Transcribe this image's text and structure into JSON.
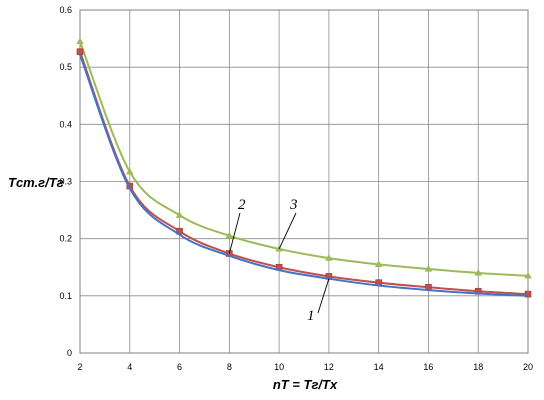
{
  "chart_data": {
    "type": "line",
    "xlabel": "nT = Tг/Tх",
    "ylabel": "Tст.г/Tг",
    "xlim": [
      2,
      20
    ],
    "ylim": [
      0,
      0.6
    ],
    "xticks": [
      2,
      4,
      6,
      8,
      10,
      12,
      14,
      16,
      18,
      20
    ],
    "yticks": [
      0,
      0.1,
      0.2,
      0.3,
      0.4,
      0.5,
      0.6
    ],
    "xtick_labels": [
      "2",
      "4",
      "6",
      "8",
      "10",
      "12",
      "14",
      "16",
      "18",
      "20"
    ],
    "ytick_labels": [
      "0",
      "0.1",
      "0.2",
      "0.3",
      "0.4",
      "0.5",
      "0.6"
    ],
    "grid": true,
    "x": [
      2,
      4,
      6,
      8,
      10,
      12,
      14,
      16,
      18,
      20
    ],
    "series": [
      {
        "annotation": "1",
        "color": "#4472c4",
        "marker": "none",
        "values": [
          0.522,
          0.288,
          0.207,
          0.17,
          0.145,
          0.13,
          0.118,
          0.11,
          0.104,
          0.1
        ]
      },
      {
        "annotation": "2",
        "color": "#c0504d",
        "marker": "square",
        "values": [
          0.527,
          0.292,
          0.213,
          0.174,
          0.15,
          0.134,
          0.123,
          0.115,
          0.108,
          0.103
        ]
      },
      {
        "annotation": "3",
        "color": "#9bbb59",
        "marker": "triangle",
        "values": [
          0.545,
          0.317,
          0.241,
          0.205,
          0.182,
          0.166,
          0.155,
          0.147,
          0.14,
          0.135
        ]
      }
    ]
  }
}
